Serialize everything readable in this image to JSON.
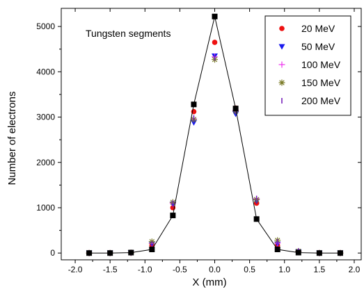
{
  "chart_data": {
    "type": "scatter",
    "title": "",
    "annotation": "Tungsten segments",
    "xlabel": "X (mm)",
    "ylabel": "Number of electrons",
    "xlim": [
      -2.2,
      2.1
    ],
    "ylim": [
      -150,
      5400
    ],
    "x_ticks": [
      -2.0,
      -1.5,
      -1.0,
      -0.5,
      0.0,
      0.5,
      1.0,
      1.5,
      2.0
    ],
    "x_tick_labels": [
      "-2.0",
      "-1.5",
      "-1.0",
      "-0.5",
      "0.0",
      "0.5",
      "1.0",
      "1.5",
      "2.0"
    ],
    "y_ticks": [
      0,
      1000,
      2000,
      3000,
      4000,
      5000
    ],
    "y_tick_labels": [
      "0",
      "1000",
      "2000",
      "3000",
      "4000",
      "5000"
    ],
    "grid": false,
    "legend_position": "top-right",
    "x": [
      -1.8,
      -1.5,
      -1.2,
      -0.9,
      -0.6,
      -0.3,
      0.0,
      0.3,
      0.6,
      0.9,
      1.2,
      1.5,
      1.8
    ],
    "series": [
      {
        "name": "20 MeV",
        "marker": "circle",
        "color": "#ee1111",
        "values": [
          0,
          0,
          5,
          170,
          1000,
          3120,
          4650,
          3200,
          1100,
          170,
          30,
          0,
          0
        ]
      },
      {
        "name": "50 MeV",
        "marker": "triangle-down",
        "color": "#1a1aee",
        "values": [
          0,
          0,
          5,
          200,
          1080,
          2880,
          4350,
          3070,
          1150,
          200,
          30,
          0,
          0
        ]
      },
      {
        "name": "100 MeV",
        "marker": "plus",
        "color": "#ee33ee",
        "values": [
          0,
          0,
          5,
          210,
          1100,
          2960,
          4330,
          3150,
          1200,
          220,
          40,
          0,
          0
        ]
      },
      {
        "name": "150 MeV",
        "marker": "asterisk",
        "color": "#777722",
        "values": [
          0,
          0,
          5,
          250,
          1120,
          2950,
          4270,
          3130,
          1180,
          280,
          40,
          0,
          0
        ]
      },
      {
        "name": "200 MeV",
        "marker": "vbar",
        "color": "#7722bb",
        "values": [
          0,
          0,
          5,
          200,
          1100,
          2980,
          4310,
          3150,
          1200,
          250,
          40,
          0,
          0
        ]
      },
      {
        "name": "",
        "marker": "square-line",
        "color": "#000000",
        "values": [
          0,
          0,
          10,
          80,
          830,
          3280,
          5220,
          3190,
          750,
          80,
          10,
          0,
          0
        ]
      }
    ]
  }
}
